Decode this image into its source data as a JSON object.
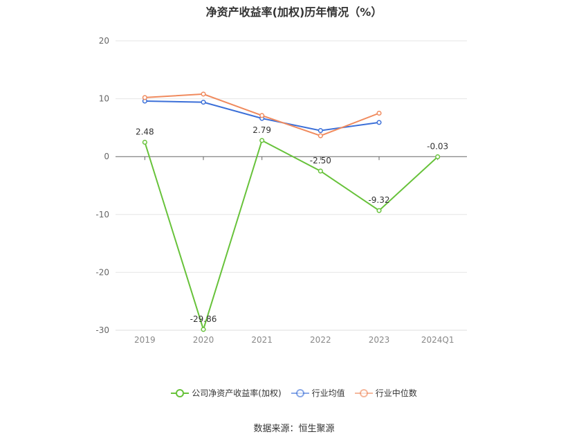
{
  "title": "净资产收益率(加权)历年情况（%）",
  "source": "数据来源：恒生聚源",
  "chart_data": {
    "type": "line",
    "title": "净资产收益率(加权)历年情况（%）",
    "categories": [
      "2019",
      "2020",
      "2021",
      "2022",
      "2023",
      "2024Q1"
    ],
    "ylim": [
      -30,
      20
    ],
    "yticks": [
      20,
      10,
      0,
      -10,
      -20,
      -30
    ],
    "grid": true,
    "legend_position": "bottom",
    "series": [
      {
        "name": "公司净资产收益率(加权)",
        "color": "#67c23a",
        "values": [
          2.48,
          -29.86,
          2.79,
          -2.5,
          -9.32,
          -0.03
        ],
        "labels": [
          "2.48",
          "-29.86",
          "2.79",
          "-2.50",
          "-9.32",
          "-0.03"
        ]
      },
      {
        "name": "行业均值",
        "color": "#3b6fd8",
        "values": [
          9.6,
          9.4,
          6.6,
          4.5,
          5.9,
          null
        ]
      },
      {
        "name": "行业中位数",
        "color": "#f08a5d",
        "values": [
          10.2,
          10.8,
          7.1,
          3.6,
          7.5,
          null
        ]
      }
    ]
  }
}
